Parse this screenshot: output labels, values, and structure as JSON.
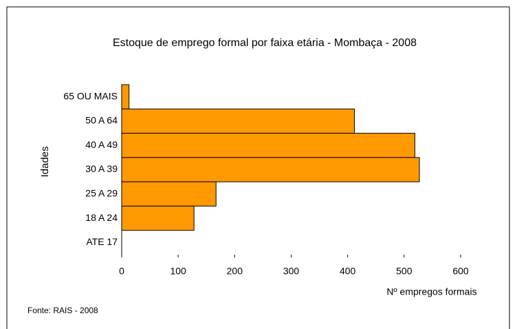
{
  "chart_data": {
    "type": "barh",
    "title": "Estoque de emprego formal por faixa etária - Mombaça  - 2008",
    "ylabel": "Idades",
    "xlabel": "Nº empregos formais",
    "source": "Fonte: RAIS - 2008",
    "categories": [
      "65 OU MAIS",
      "50 A 64",
      "40 A 49",
      "30 A 39",
      "25 A 29",
      "18 A 24",
      "ATE 17"
    ],
    "values": [
      13,
      412,
      519,
      527,
      167,
      128,
      0
    ],
    "color": "#ff9900",
    "xlim": [
      0,
      600
    ],
    "xticks": [
      0,
      100,
      200,
      300,
      400,
      500,
      600
    ]
  }
}
